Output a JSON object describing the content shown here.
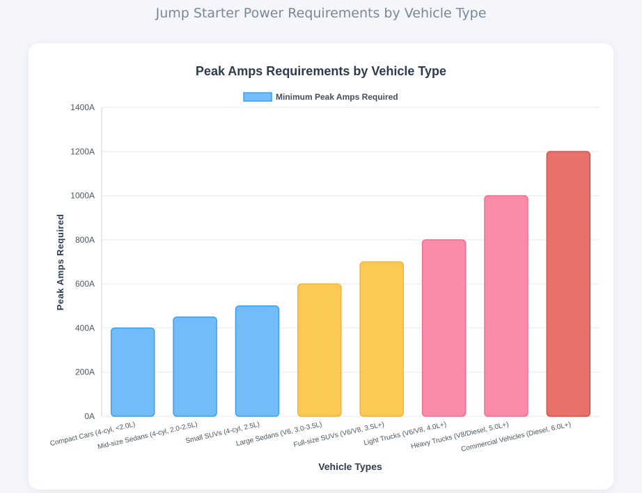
{
  "page": {
    "title": "Jump Starter Power Requirements by Vehicle Type"
  },
  "chart_data": {
    "type": "bar",
    "title": "Peak Amps Requirements by Vehicle Type",
    "xlabel": "Vehicle Types",
    "ylabel": "Peak Amps Required",
    "ylim": [
      0,
      1400
    ],
    "y_ticks": [
      "0A",
      "200A",
      "400A",
      "600A",
      "800A",
      "1000A",
      "1200A",
      "1400A"
    ],
    "y_tick_values": [
      0,
      200,
      400,
      600,
      800,
      1000,
      1200,
      1400
    ],
    "legend": {
      "label": "Minimum Peak Amps Required",
      "placement": "top-center"
    },
    "grid": true,
    "categories": [
      "Compact Cars (4-cyl, <2.0L)",
      "Mid-size Sedans (4-cyl, 2.0-2.5L)",
      "Small SUVs (4-cyl, 2.5L)",
      "Large Sedans (V6, 3.0-3.5L)",
      "Full-size SUVs (V6/V8, 3.5L+)",
      "Light Trucks (V6/V8, 4.0L+)",
      "Heavy Trucks (V8/Diesel, 5.0L+)",
      "Commercial Vehicles (Diesel, 6.0L+)"
    ],
    "series": [
      {
        "name": "Minimum Peak Amps Required",
        "values": [
          400,
          450,
          500,
          600,
          700,
          800,
          1000,
          1200
        ]
      }
    ],
    "colors": {
      "fills": [
        "#72bdf9",
        "#72bdf9",
        "#72bdf9",
        "#fdc955",
        "#fdc955",
        "#f98ba9",
        "#f98ba9",
        "#e8716a"
      ],
      "strokes": [
        "#3d9ee8",
        "#3d9ee8",
        "#3d9ee8",
        "#f2b334",
        "#f2b334",
        "#ef6f93",
        "#ef6f93",
        "#dd4b45"
      ]
    }
  }
}
